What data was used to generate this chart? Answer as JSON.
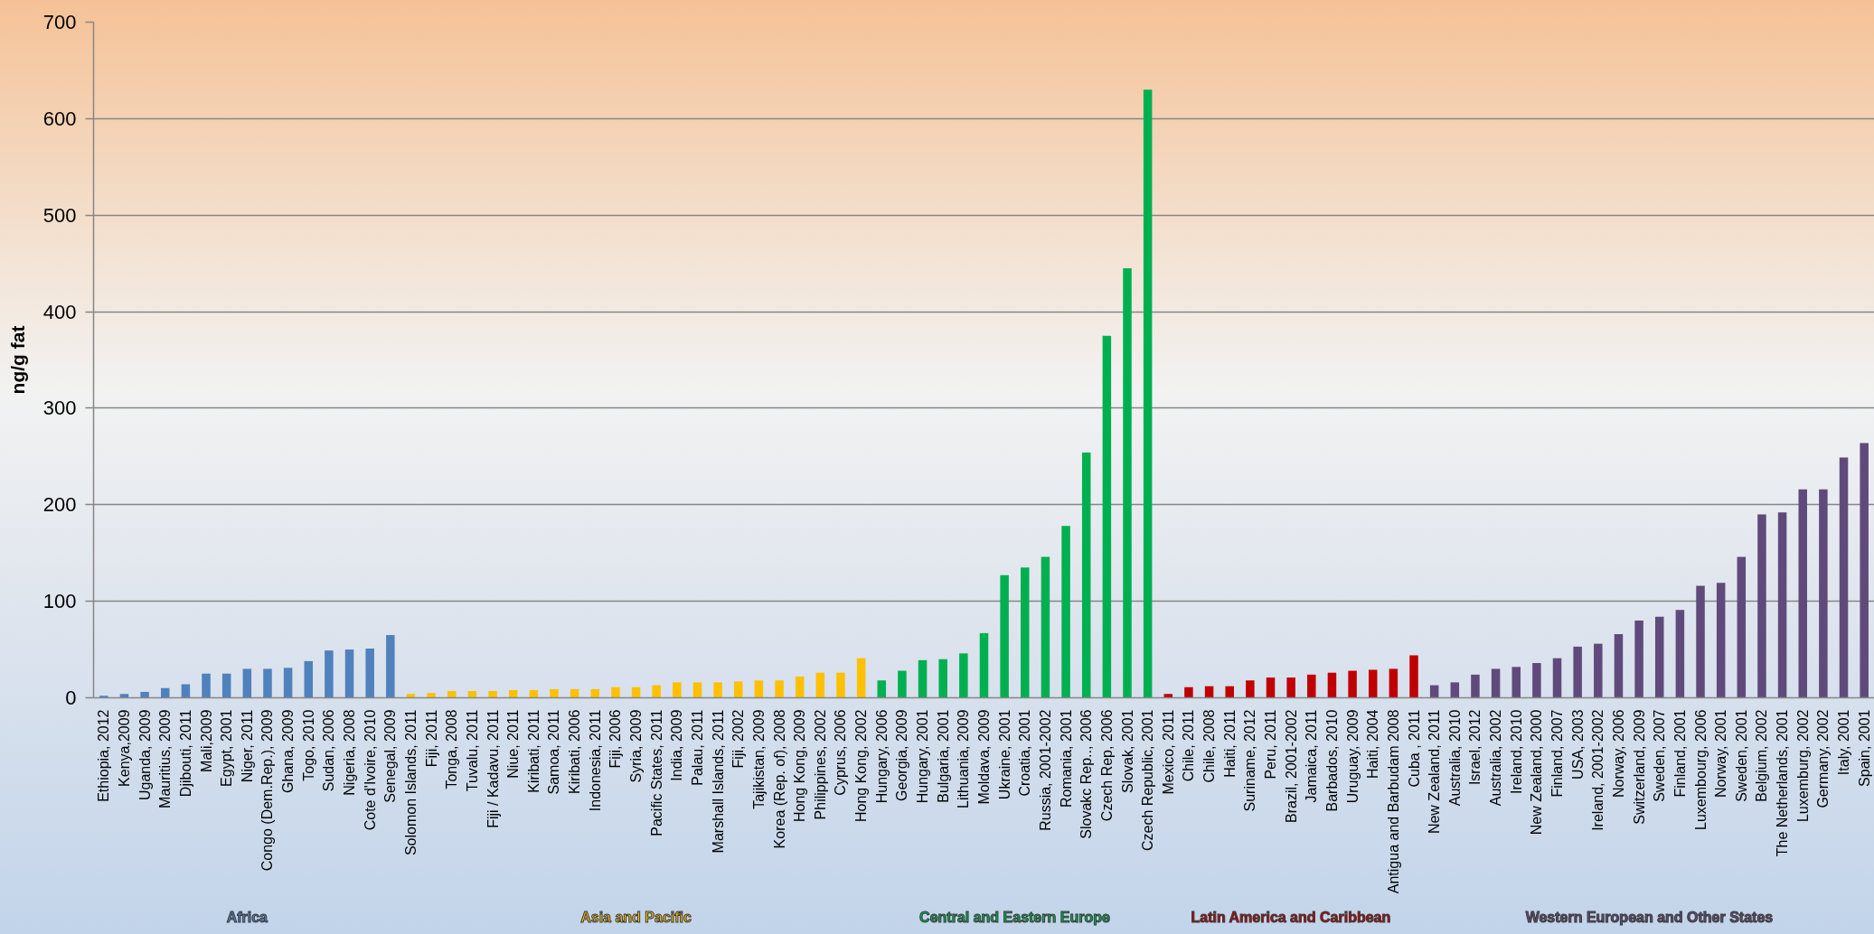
{
  "chart_data": {
    "type": "bar",
    "ylabel": "ng/g fat",
    "categories": [
      "Ethiopia, 2012",
      "Kenya,2009",
      "Uganda, 2009",
      "Mauritius, 2009",
      "Djibouti, 2011",
      "Mali,2009",
      "Egypt, 2001",
      "Niger, 2011",
      "Congo (Dem.Rep.), 2009",
      "Ghana, 2009",
      "Togo, 2010",
      "Sudan, 2006",
      "Nigeria, 2008",
      "Cote d'Ivoire, 2010",
      "Senegal, 2009",
      "Solomon Islands, 2011",
      "Fiji, 2011",
      "Tonga, 2008",
      "Tuvalu, 2011",
      "Fiji / Kadavu, 2011",
      "Niue, 2011",
      "Kiribati, 2011",
      "Samoa, 2011",
      "Kiribati, 2006",
      "Indonesia, 2011",
      "Fiji, 2006",
      "Syria, 2009",
      "Pacific States, 2011",
      "India, 2009",
      "Palau, 2011",
      "Marshall Islands, 2011",
      "Fiji, 2002",
      "Tajikistan, 2009",
      "Korea (Rep. of), 2008",
      "Hong Kong, 2009",
      "Philippines, 2002",
      "Cyprus, 2006",
      "Hong Kong, 2002",
      "Hungary, 2006",
      "Georgia, 2009",
      "Hungary, 2001",
      "Bulgaria, 2001",
      "Lithuania, 2009",
      "Moldava, 2009",
      "Ukraine, 2001",
      "Croatia, 2001",
      "Russia, 2001-2002",
      "Romania, 2001",
      "Slovakc Rep.., 2006",
      "Czech Rep, 2006",
      "Slovak, 2001",
      "Czech Republic, 2001",
      "Mexico, 2011",
      "Chile, 2011",
      "Chile, 2008",
      "Haiti, 2011",
      "Suriname, 2012",
      "Peru, 2011",
      "Brazil, 2001-2002",
      "Jamaica, 2011",
      "Barbados, 2010",
      "Uruguay, 2009",
      "Haiti, 2004",
      "Antigua and Barbudam 2008",
      "Cuba , 2011",
      "New Zealand, 2011",
      "Australia, 2010",
      "Israel, 2012",
      "Australia, 2002",
      "Ireland, 2010",
      "New Zealand, 2000",
      "Finland, 2007",
      "USA, 2003",
      "Ireland, 2001-2002",
      "Norway, 2006",
      "Switzerland, 2009",
      "Sweden, 2007",
      "Finland, 2001",
      "Luxembourg, 2006",
      "Norway, 2001",
      "Sweden, 2001",
      "Belgium, 2002",
      "The Netherlands, 2001",
      "Luxemburg, 2002",
      "Germany, 2002",
      "Italy, 2001",
      "Spain, 2001"
    ],
    "series": [
      {
        "name": "Africa",
        "color": "#4f81bd",
        "values": [
          2,
          4,
          6,
          10,
          14,
          25,
          25,
          30,
          30,
          31,
          38,
          49,
          50,
          51,
          65,
          null,
          null,
          null,
          null,
          null,
          null,
          null,
          null,
          null,
          null,
          null,
          null,
          null,
          null,
          null,
          null,
          null,
          null,
          null,
          null,
          null,
          null,
          null,
          null,
          null,
          null,
          null,
          null,
          null,
          null,
          null,
          null,
          null,
          null,
          null,
          null,
          null,
          null,
          null,
          null,
          null,
          null,
          null,
          null,
          null,
          null,
          null,
          null,
          null,
          null,
          null,
          null,
          null,
          null,
          null,
          null,
          null,
          null,
          null,
          null,
          null,
          null,
          null,
          null,
          null,
          null,
          null,
          null,
          null,
          null,
          null,
          null
        ]
      },
      {
        "name": "Asia and Pacific",
        "color": "#ffc000",
        "values": [
          null,
          null,
          null,
          null,
          null,
          null,
          null,
          null,
          null,
          null,
          null,
          null,
          null,
          null,
          null,
          4,
          5,
          7,
          7,
          7,
          8,
          8,
          9,
          9,
          9,
          11,
          11,
          13,
          16,
          16,
          16,
          17,
          18,
          18,
          22,
          26,
          26,
          41,
          null,
          null,
          null,
          null,
          null,
          null,
          null,
          null,
          null,
          null,
          null,
          null,
          null,
          null,
          null,
          null,
          null,
          null,
          null,
          null,
          null,
          null,
          null,
          null,
          null,
          null,
          null,
          null,
          null,
          null,
          null,
          null,
          null,
          null,
          null,
          null,
          null,
          null,
          null,
          null,
          null,
          null,
          null,
          null,
          null,
          null,
          null,
          null,
          null
        ]
      },
      {
        "name": "Central and Eastern Europe",
        "color": "#00b050",
        "values": [
          null,
          null,
          null,
          null,
          null,
          null,
          null,
          null,
          null,
          null,
          null,
          null,
          null,
          null,
          null,
          null,
          null,
          null,
          null,
          null,
          null,
          null,
          null,
          null,
          null,
          null,
          null,
          null,
          null,
          null,
          null,
          null,
          null,
          null,
          null,
          null,
          null,
          null,
          18,
          28,
          39,
          40,
          46,
          67,
          127,
          135,
          146,
          178,
          254,
          375,
          445,
          630,
          null,
          null,
          null,
          null,
          null,
          null,
          null,
          null,
          null,
          null,
          null,
          null,
          null,
          null,
          null,
          null,
          null,
          null,
          null,
          null,
          null,
          null,
          null,
          null,
          null,
          null,
          null,
          null,
          null,
          null,
          null,
          null,
          null,
          null,
          null
        ]
      },
      {
        "name": "Latin America and Caribbean",
        "color": "#c00000",
        "values": [
          null,
          null,
          null,
          null,
          null,
          null,
          null,
          null,
          null,
          null,
          null,
          null,
          null,
          null,
          null,
          null,
          null,
          null,
          null,
          null,
          null,
          null,
          null,
          null,
          null,
          null,
          null,
          null,
          null,
          null,
          null,
          null,
          null,
          null,
          null,
          null,
          null,
          null,
          null,
          null,
          null,
          null,
          null,
          null,
          null,
          null,
          null,
          null,
          null,
          null,
          null,
          null,
          4,
          11,
          12,
          12,
          18,
          21,
          21,
          24,
          26,
          28,
          29,
          30,
          44,
          null,
          null,
          null,
          null,
          null,
          null,
          null,
          null,
          null,
          null,
          null,
          null,
          null,
          null,
          null,
          null,
          null,
          null,
          null,
          null,
          null,
          null
        ]
      },
      {
        "name": "Western European and Other States",
        "color": "#604a7b",
        "values": [
          null,
          null,
          null,
          null,
          null,
          null,
          null,
          null,
          null,
          null,
          null,
          null,
          null,
          null,
          null,
          null,
          null,
          null,
          null,
          null,
          null,
          null,
          null,
          null,
          null,
          null,
          null,
          null,
          null,
          null,
          null,
          null,
          null,
          null,
          null,
          null,
          null,
          null,
          null,
          null,
          null,
          null,
          null,
          null,
          null,
          null,
          null,
          null,
          null,
          null,
          null,
          null,
          null,
          null,
          null,
          null,
          null,
          null,
          null,
          null,
          null,
          null,
          null,
          null,
          null,
          13,
          16,
          24,
          30,
          32,
          36,
          41,
          53,
          56,
          66,
          80,
          84,
          91,
          116,
          119,
          146,
          190,
          192,
          216,
          216,
          249,
          264
        ]
      }
    ],
    "ylim": [
      0,
      700
    ],
    "yticks": [
      0,
      100,
      200,
      300,
      400,
      500,
      600,
      700
    ],
    "grid": "y"
  }
}
